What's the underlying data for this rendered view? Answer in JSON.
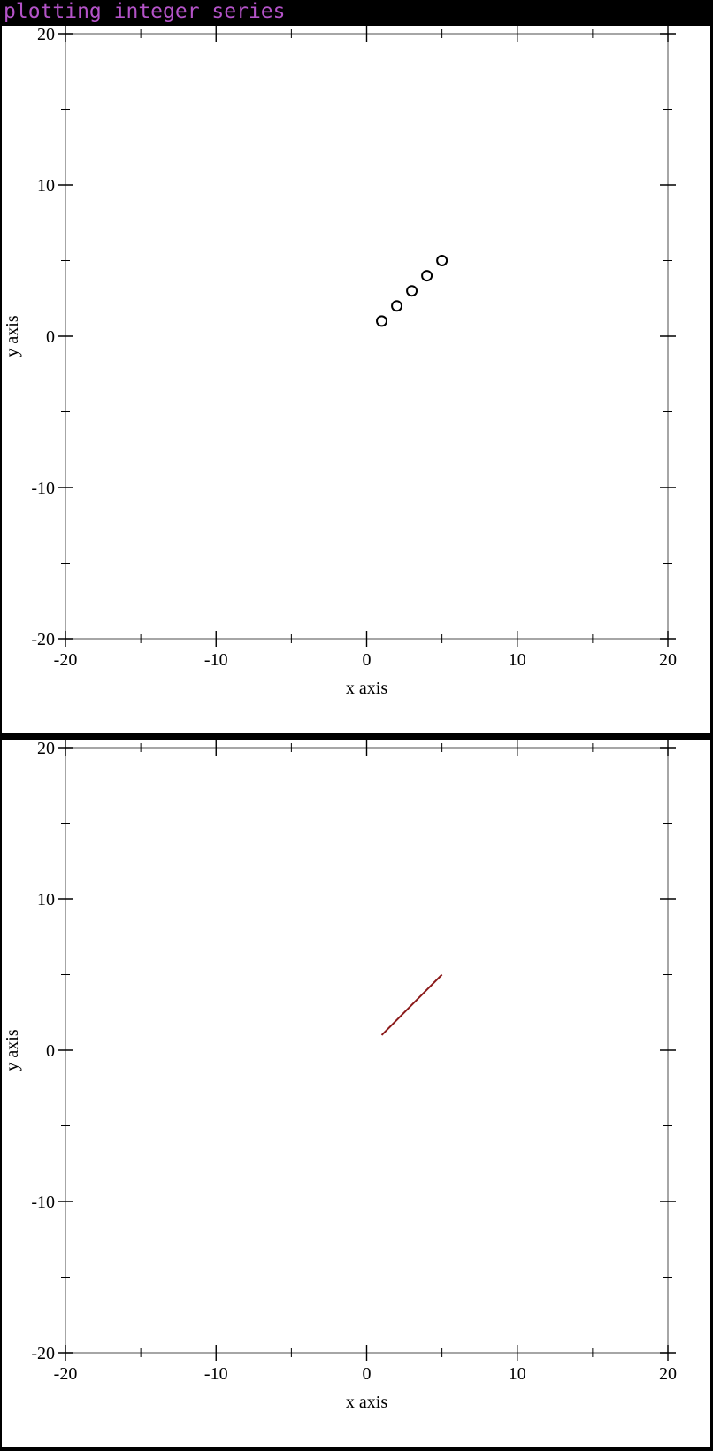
{
  "header": {
    "title": "plotting integer series"
  },
  "chart_data": [
    {
      "type": "scatter",
      "xlabel": "x axis",
      "ylabel": "y axis",
      "xlim": [
        -20,
        20
      ],
      "ylim": [
        -20,
        20
      ],
      "x_ticks": [
        -20,
        -10,
        0,
        10,
        20
      ],
      "y_ticks": [
        -20,
        -10,
        0,
        10,
        20
      ],
      "x_tick_labels": [
        "-20",
        "-10",
        "0",
        "10",
        "20"
      ],
      "y_tick_labels": [
        "-20",
        "-10",
        "0",
        "10",
        "20"
      ],
      "minor_ticks": [
        -15,
        -5,
        5,
        15
      ],
      "marker": "open-circle",
      "series": [
        {
          "x": [
            1,
            2,
            3,
            4,
            5
          ],
          "y": [
            1,
            2,
            3,
            4,
            5
          ],
          "color": "#000000"
        }
      ]
    },
    {
      "type": "line",
      "xlabel": "x axis",
      "ylabel": "y axis",
      "xlim": [
        -20,
        20
      ],
      "ylim": [
        -20,
        20
      ],
      "x_ticks": [
        -20,
        -10,
        0,
        10,
        20
      ],
      "y_ticks": [
        -20,
        -10,
        0,
        10,
        20
      ],
      "x_tick_labels": [
        "-20",
        "-10",
        "0",
        "10",
        "20"
      ],
      "y_tick_labels": [
        "-20",
        "-10",
        "0",
        "10",
        "20"
      ],
      "minor_ticks": [
        -15,
        -5,
        5,
        15
      ],
      "series": [
        {
          "x": [
            1,
            2,
            3,
            4,
            5
          ],
          "y": [
            1,
            2,
            3,
            4,
            5
          ],
          "color": "#8b1a1a"
        }
      ]
    }
  ]
}
